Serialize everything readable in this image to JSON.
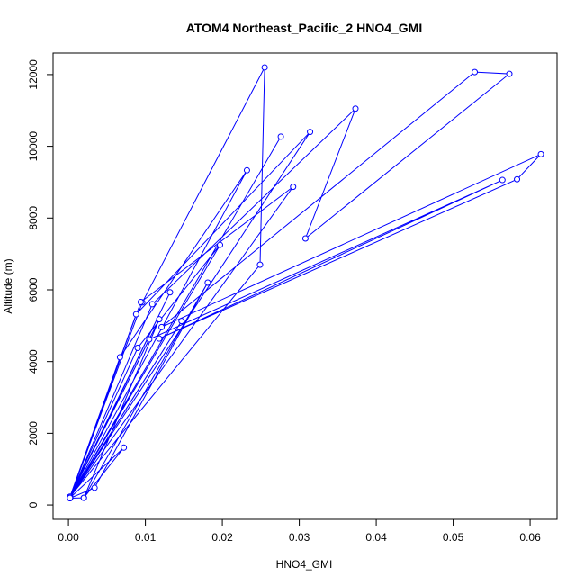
{
  "chart_data": {
    "type": "line",
    "title": "ATOM4 Northeast_Pacific_2 HNO4_GMI",
    "xlabel": "HNO4_GMI",
    "ylabel": "Altitude (m)",
    "xlim": [
      -0.002,
      0.0635
    ],
    "ylim": [
      -400,
      12600
    ],
    "x_ticks": [
      0.0,
      0.01,
      0.02,
      0.03,
      0.04,
      0.05,
      0.06
    ],
    "x_tick_labels": [
      "0.00",
      "0.01",
      "0.02",
      "0.03",
      "0.04",
      "0.05",
      "0.06"
    ],
    "y_ticks": [
      0,
      2000,
      4000,
      6000,
      8000,
      10000,
      12000
    ],
    "y_tick_labels": [
      "0",
      "2000",
      "4000",
      "6000",
      "8000",
      "10000",
      "12000"
    ],
    "grid": false,
    "series_color": "#0000ff",
    "series": [
      {
        "x": [
          0.0002,
          0.0096,
          0.0255,
          0.0249,
          0.0002,
          0.0067,
          0.0232,
          0.0002,
          0.0088,
          0.0314,
          0.0002,
          0.0094,
          0.0292,
          0.0002,
          0.0109,
          0.0373,
          0.0308,
          0.0573,
          0.0528,
          0.0121,
          0.0614,
          0.0583,
          0.0118,
          0.0564,
          0.0105,
          0.0002,
          0.009,
          0.0197,
          0.0002,
          0.002,
          0.0118,
          0.0002,
          0.0132,
          0.0002,
          0.0147,
          0.0002,
          0.0034,
          0.0181,
          0.002,
          0.0072,
          0.0002,
          0.0276
        ],
        "y": [
          210,
          5650,
          12200,
          6700,
          230,
          4120,
          9330,
          200,
          5320,
          10400,
          210,
          5660,
          8870,
          220,
          5600,
          11050,
          7430,
          12020,
          12070,
          4960,
          9780,
          9080,
          4640,
          9060,
          4620,
          230,
          4380,
          7250,
          190,
          200,
          5180,
          230,
          5930,
          200,
          5130,
          190,
          480,
          6200,
          200,
          1600,
          200,
          10270
        ]
      }
    ]
  }
}
